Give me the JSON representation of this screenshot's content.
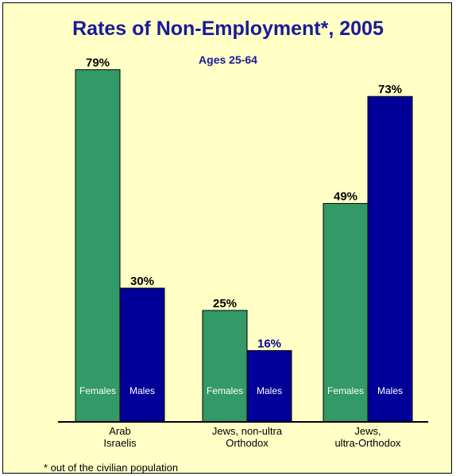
{
  "chart_data": {
    "type": "bar",
    "title": "Rates of Non-Employment*, 2005",
    "subtitle": "Ages 25-64",
    "xlabel": "",
    "ylabel": "",
    "ylim": [
      0,
      100
    ],
    "grid": false,
    "categories": [
      [
        "Arab",
        "Israelis"
      ],
      [
        "Jews, non-ultra",
        "Orthodox"
      ],
      [
        "Jews,",
        "ultra-Orthodox"
      ]
    ],
    "series": [
      {
        "name": "Females",
        "color": "#339966",
        "values": [
          79,
          25,
          49
        ],
        "data_labels": [
          "79%",
          "25%",
          "49%"
        ],
        "label_color": "#000000"
      },
      {
        "name": "Males",
        "color": "#000099",
        "values": [
          30,
          16,
          73
        ],
        "data_labels": [
          "30%",
          "16%",
          "73%"
        ],
        "label_color": [
          "#000000",
          "#000099",
          "#000000"
        ]
      }
    ],
    "footnote": "* out of the civilian population"
  }
}
